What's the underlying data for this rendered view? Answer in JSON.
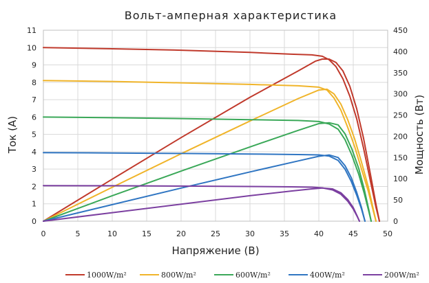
{
  "chart_data": {
    "type": "line",
    "title": "Вольт-амперная характеристика",
    "xlabel": "Напряжение (В)",
    "ylabel": "Ток (А)",
    "y2label": "Мощность (Вт)",
    "xlim": [
      0,
      50
    ],
    "ylim": [
      0,
      11
    ],
    "y2lim": [
      0,
      450
    ],
    "x_ticks": [
      0,
      5,
      10,
      15,
      20,
      25,
      30,
      35,
      40,
      45,
      50
    ],
    "y_ticks": [
      0,
      1,
      2,
      3,
      4,
      5,
      6,
      7,
      8,
      9,
      10,
      11
    ],
    "y2_ticks": [
      0,
      50,
      100,
      150,
      200,
      250,
      300,
      350,
      400,
      450
    ],
    "grid": true,
    "legend_position": "bottom",
    "series": [
      {
        "name": "1000W/m²",
        "color": "#c0392b",
        "current": [
          [
            0,
            10
          ],
          [
            10,
            9.93
          ],
          [
            20,
            9.85
          ],
          [
            30,
            9.72
          ],
          [
            36,
            9.62
          ],
          [
            39,
            9.58
          ],
          [
            40.5,
            9.5
          ],
          [
            41.5,
            9.3
          ],
          [
            42.5,
            8.9
          ],
          [
            43.5,
            8.2
          ],
          [
            44.5,
            7.2
          ],
          [
            45.5,
            5.9
          ],
          [
            46.5,
            4.2
          ],
          [
            47.5,
            2.3
          ],
          [
            48.3,
            0.8
          ],
          [
            48.8,
            0
          ]
        ],
        "power": [
          [
            0,
            0
          ],
          [
            10,
            99
          ],
          [
            20,
            197
          ],
          [
            30,
            292
          ],
          [
            37,
            354
          ],
          [
            39.5,
            377
          ],
          [
            40.5,
            382
          ],
          [
            41.5,
            382
          ],
          [
            42.5,
            374
          ],
          [
            43.5,
            354
          ],
          [
            44.5,
            318
          ],
          [
            45.5,
            265
          ],
          [
            46.5,
            195
          ],
          [
            47.5,
            110
          ],
          [
            48.3,
            40
          ],
          [
            48.8,
            0
          ]
        ]
      },
      {
        "name": "800W/m²",
        "color": "#f0b429",
        "current": [
          [
            0,
            8.1
          ],
          [
            10,
            8.05
          ],
          [
            20,
            7.97
          ],
          [
            30,
            7.88
          ],
          [
            37,
            7.8
          ],
          [
            40,
            7.72
          ],
          [
            41.2,
            7.55
          ],
          [
            42.2,
            7.1
          ],
          [
            43.2,
            6.4
          ],
          [
            44.2,
            5.4
          ],
          [
            45.2,
            4.3
          ],
          [
            46.2,
            3.0
          ],
          [
            47.2,
            1.7
          ],
          [
            47.9,
            0.6
          ],
          [
            48.3,
            0
          ]
        ],
        "power": [
          [
            0,
            0
          ],
          [
            10,
            80
          ],
          [
            20,
            159
          ],
          [
            30,
            236
          ],
          [
            37,
            289
          ],
          [
            40,
            309
          ],
          [
            41.2,
            311
          ],
          [
            42.2,
            300
          ],
          [
            43.2,
            276
          ],
          [
            44.2,
            239
          ],
          [
            45.2,
            194
          ],
          [
            46.2,
            139
          ],
          [
            47.2,
            80
          ],
          [
            47.9,
            29
          ],
          [
            48.3,
            0
          ]
        ]
      },
      {
        "name": "600W/m²",
        "color": "#3aa858",
        "current": [
          [
            0,
            6
          ],
          [
            10,
            5.96
          ],
          [
            20,
            5.91
          ],
          [
            30,
            5.85
          ],
          [
            37,
            5.8
          ],
          [
            40,
            5.74
          ],
          [
            41.5,
            5.6
          ],
          [
            42.8,
            5.3
          ],
          [
            43.8,
            4.7
          ],
          [
            44.8,
            3.8
          ],
          [
            45.8,
            2.7
          ],
          [
            46.6,
            1.6
          ],
          [
            47.3,
            0.5
          ],
          [
            47.6,
            0
          ]
        ],
        "power": [
          [
            0,
            0
          ],
          [
            10,
            60
          ],
          [
            20,
            118
          ],
          [
            30,
            175
          ],
          [
            37,
            214
          ],
          [
            40,
            230
          ],
          [
            41.5,
            232
          ],
          [
            42.8,
            227
          ],
          [
            43.8,
            206
          ],
          [
            44.8,
            170
          ],
          [
            45.8,
            124
          ],
          [
            46.6,
            75
          ],
          [
            47.3,
            24
          ],
          [
            47.6,
            0
          ]
        ]
      },
      {
        "name": "400W/m²",
        "color": "#2f75c2",
        "current": [
          [
            0,
            3.95
          ],
          [
            10,
            3.93
          ],
          [
            20,
            3.9
          ],
          [
            30,
            3.87
          ],
          [
            37,
            3.84
          ],
          [
            40,
            3.82
          ],
          [
            41.5,
            3.75
          ],
          [
            42.8,
            3.5
          ],
          [
            43.8,
            3.0
          ],
          [
            44.7,
            2.3
          ],
          [
            45.5,
            1.5
          ],
          [
            46.2,
            0.7
          ],
          [
            46.7,
            0
          ]
        ],
        "power": [
          [
            0,
            0
          ],
          [
            10,
            39
          ],
          [
            20,
            78
          ],
          [
            30,
            116
          ],
          [
            37,
            142
          ],
          [
            40,
            153
          ],
          [
            41.5,
            156
          ],
          [
            42.8,
            150
          ],
          [
            43.8,
            131
          ],
          [
            44.7,
            103
          ],
          [
            45.5,
            68
          ],
          [
            46.2,
            32
          ],
          [
            46.7,
            0
          ]
        ]
      },
      {
        "name": "200W/m²",
        "color": "#7b3fa0",
        "current": [
          [
            0,
            2.05
          ],
          [
            10,
            2.04
          ],
          [
            20,
            2.02
          ],
          [
            30,
            2.0
          ],
          [
            36,
            1.98
          ],
          [
            39,
            1.96
          ],
          [
            40.5,
            1.92
          ],
          [
            42,
            1.8
          ],
          [
            43.2,
            1.55
          ],
          [
            44.2,
            1.15
          ],
          [
            45,
            0.7
          ],
          [
            45.6,
            0.25
          ],
          [
            45.9,
            0
          ]
        ],
        "power": [
          [
            0,
            0
          ],
          [
            10,
            20
          ],
          [
            20,
            40
          ],
          [
            30,
            60
          ],
          [
            36,
            71
          ],
          [
            39,
            76
          ],
          [
            40.5,
            78
          ],
          [
            42,
            76
          ],
          [
            43.2,
            67
          ],
          [
            44.2,
            51
          ],
          [
            45,
            32
          ],
          [
            45.6,
            11
          ],
          [
            45.9,
            0
          ]
        ]
      }
    ]
  }
}
